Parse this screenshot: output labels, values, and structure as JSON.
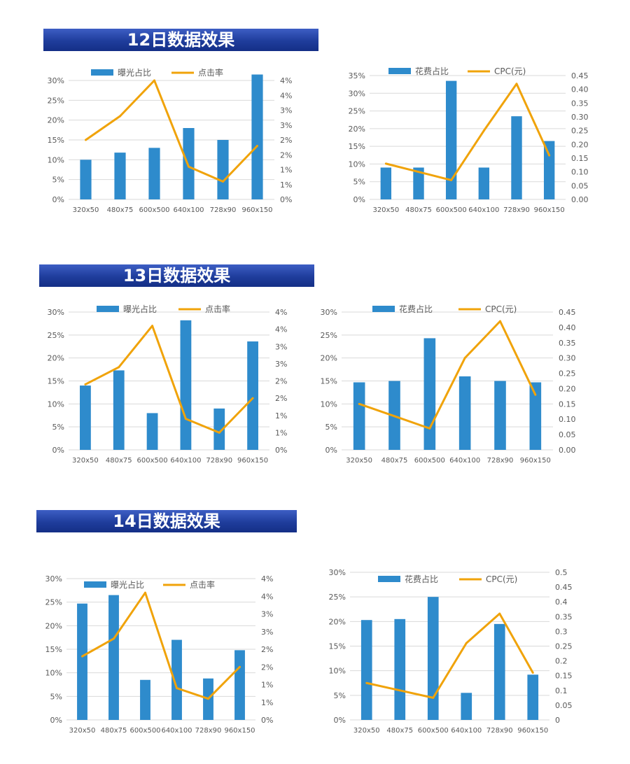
{
  "sections": [
    {
      "title": "12日数据效果"
    },
    {
      "title": "13日数据效果"
    },
    {
      "title": "14日数据效果"
    }
  ],
  "colors": {
    "bar": "#2e8bcc",
    "line": "#f0a30a",
    "grid": "#d9d9d9",
    "banner": "#1f3d9c"
  },
  "chart_data": [
    {
      "type": "bar",
      "section": "12日数据效果",
      "categories": [
        "320x50",
        "480x75",
        "600x500",
        "640x100",
        "728x90",
        "960x150"
      ],
      "series": [
        {
          "name": "曝光占比",
          "type": "bar",
          "axis": "left",
          "values": [
            10,
            11.8,
            13,
            18,
            15,
            31.5
          ]
        },
        {
          "name": "点击率",
          "type": "line",
          "axis": "right",
          "values": [
            2.0,
            2.8,
            4.0,
            1.1,
            0.6,
            1.8
          ]
        }
      ],
      "y_left": {
        "ticks": [
          "0%",
          "5%",
          "10%",
          "15%",
          "20%",
          "25%",
          "30%"
        ],
        "ylim": [
          0,
          30
        ]
      },
      "y_right": {
        "ticks": [
          "0%",
          "1%",
          "1%",
          "2%",
          "2%",
          "3%",
          "3%",
          "4%",
          "4%"
        ],
        "ylim": [
          0,
          4
        ]
      },
      "legend": "top"
    },
    {
      "type": "bar",
      "section": "12日数据效果",
      "categories": [
        "320x50",
        "480x75",
        "600x500",
        "640x100",
        "728x90",
        "960x150"
      ],
      "series": [
        {
          "name": "花费占比",
          "type": "bar",
          "axis": "left",
          "values": [
            9,
            9,
            33.5,
            9,
            23.5,
            16.5
          ]
        },
        {
          "name": "CPC(元)",
          "type": "line",
          "axis": "right",
          "values": [
            0.13,
            0.1,
            0.07,
            0.25,
            0.42,
            0.16
          ]
        }
      ],
      "y_left": {
        "ticks": [
          "0%",
          "5%",
          "10%",
          "15%",
          "20%",
          "25%",
          "30%",
          "35%"
        ],
        "ylim": [
          0,
          35
        ]
      },
      "y_right": {
        "ticks": [
          "0.00",
          "0.05",
          "0.10",
          "0.15",
          "0.20",
          "0.25",
          "0.30",
          "0.35",
          "0.40",
          "0.45"
        ],
        "ylim": [
          0,
          0.45
        ]
      },
      "legend": "top"
    },
    {
      "type": "bar",
      "section": "13日数据效果",
      "categories": [
        "320x50",
        "480x75",
        "600x500",
        "640x100",
        "728x90",
        "960x150"
      ],
      "series": [
        {
          "name": "曝光占比",
          "type": "bar",
          "axis": "left",
          "values": [
            14,
            17.3,
            8,
            28.2,
            9,
            23.6
          ]
        },
        {
          "name": "点击率",
          "type": "line",
          "axis": "right",
          "values": [
            1.9,
            2.4,
            3.6,
            0.9,
            0.5,
            1.5
          ]
        }
      ],
      "y_left": {
        "ticks": [
          "0%",
          "5%",
          "10%",
          "15%",
          "20%",
          "25%",
          "30%"
        ],
        "ylim": [
          0,
          30
        ]
      },
      "y_right": {
        "ticks": [
          "0%",
          "1%",
          "1%",
          "2%",
          "2%",
          "3%",
          "3%",
          "4%",
          "4%"
        ],
        "ylim": [
          0,
          4
        ]
      },
      "legend": "top"
    },
    {
      "type": "bar",
      "section": "13日数据效果",
      "categories": [
        "320x50",
        "480x75",
        "600x500",
        "640x100",
        "728x90",
        "960x150"
      ],
      "series": [
        {
          "name": "花费占比",
          "type": "bar",
          "axis": "left",
          "values": [
            14.7,
            15,
            24.3,
            16,
            15,
            14.7
          ]
        },
        {
          "name": "CPC(元)",
          "type": "line",
          "axis": "right",
          "values": [
            0.15,
            0.11,
            0.07,
            0.3,
            0.42,
            0.18
          ]
        }
      ],
      "y_left": {
        "ticks": [
          "0%",
          "5%",
          "10%",
          "15%",
          "20%",
          "25%",
          "30%"
        ],
        "ylim": [
          0,
          30
        ]
      },
      "y_right": {
        "ticks": [
          "0.00",
          "0.05",
          "0.10",
          "0.15",
          "0.20",
          "0.25",
          "0.30",
          "0.35",
          "0.40",
          "0.45"
        ],
        "ylim": [
          0,
          0.45
        ]
      },
      "legend": "top"
    },
    {
      "type": "bar",
      "section": "14日数据效果",
      "categories": [
        "320x50",
        "480x75",
        "600x500",
        "640x100",
        "728x90",
        "960x150"
      ],
      "series": [
        {
          "name": "曝光占比",
          "type": "bar",
          "axis": "left",
          "values": [
            24.7,
            26.5,
            8.5,
            17,
            8.8,
            14.8
          ]
        },
        {
          "name": "点击率",
          "type": "line",
          "axis": "right",
          "values": [
            1.8,
            2.3,
            3.6,
            0.9,
            0.6,
            1.5
          ]
        }
      ],
      "y_left": {
        "ticks": [
          "0%",
          "5%",
          "10%",
          "15%",
          "20%",
          "25%",
          "30%"
        ],
        "ylim": [
          0,
          30
        ]
      },
      "y_right": {
        "ticks": [
          "0%",
          "1%",
          "1%",
          "2%",
          "2%",
          "3%",
          "3%",
          "4%",
          "4%"
        ],
        "ylim": [
          0,
          4
        ]
      },
      "legend": "top"
    },
    {
      "type": "bar",
      "section": "14日数据效果",
      "categories": [
        "320x50",
        "480x75",
        "600x500",
        "640x100",
        "728x90",
        "960x150"
      ],
      "series": [
        {
          "name": "花费占比",
          "type": "bar",
          "axis": "left",
          "values": [
            20.3,
            20.5,
            25,
            5.5,
            19.5,
            9.2
          ]
        },
        {
          "name": "CPC(元)",
          "type": "line",
          "axis": "right",
          "values": [
            0.125,
            0.1,
            0.075,
            0.26,
            0.36,
            0.16
          ]
        }
      ],
      "y_left": {
        "ticks": [
          "0%",
          "5%",
          "10%",
          "15%",
          "20%",
          "25%",
          "30%"
        ],
        "ylim": [
          0,
          30
        ]
      },
      "y_right": {
        "ticks": [
          "0",
          "0.05",
          "0.1",
          "0.15",
          "0.2",
          "0.25",
          "0.3",
          "0.35",
          "0.4",
          "0.45",
          "0.5"
        ],
        "ylim": [
          0,
          0.5
        ]
      },
      "legend": "top"
    }
  ]
}
